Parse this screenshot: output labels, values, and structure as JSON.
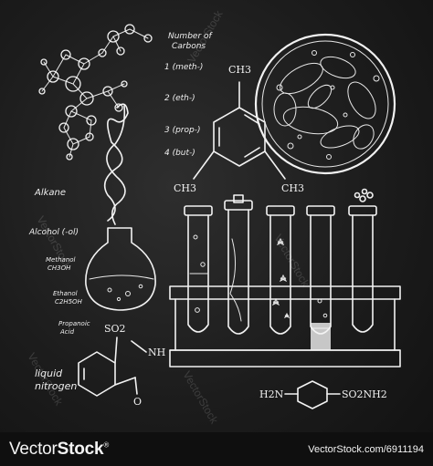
{
  "labels": {
    "carbons_title_1": "Number of",
    "carbons_title_2": "Carbons",
    "c1": "1 (meth-)",
    "c2": "2 (eth-)",
    "c3": "3 (prop-)",
    "c4": "4 (but-)",
    "alkane": "Alkane",
    "alcohol": "Alcohol (-ol)",
    "methanol_1": "Methanol",
    "methanol_2": "CH3OH",
    "ethanol_1": "Ethanol",
    "ethanol_2": "C2H5OH",
    "propanoic_1": "Propanoic",
    "propanoic_2": "Acid",
    "liquid_1": "liquid",
    "liquid_2": "nitrogen",
    "ch3_top": "CH3",
    "ch3_left": "CH3",
    "ch3_right": "CH3",
    "so2": "SO2",
    "nh": "NH",
    "h2n": "H2N",
    "so2nh2": "SO2NH2",
    "o": "O"
  },
  "watermark": "VectorStock",
  "footer": {
    "brand_prefix": "Vector",
    "brand_suffix": "Stock",
    "reg": "®",
    "credit": "VectorStock.com/6911194"
  }
}
